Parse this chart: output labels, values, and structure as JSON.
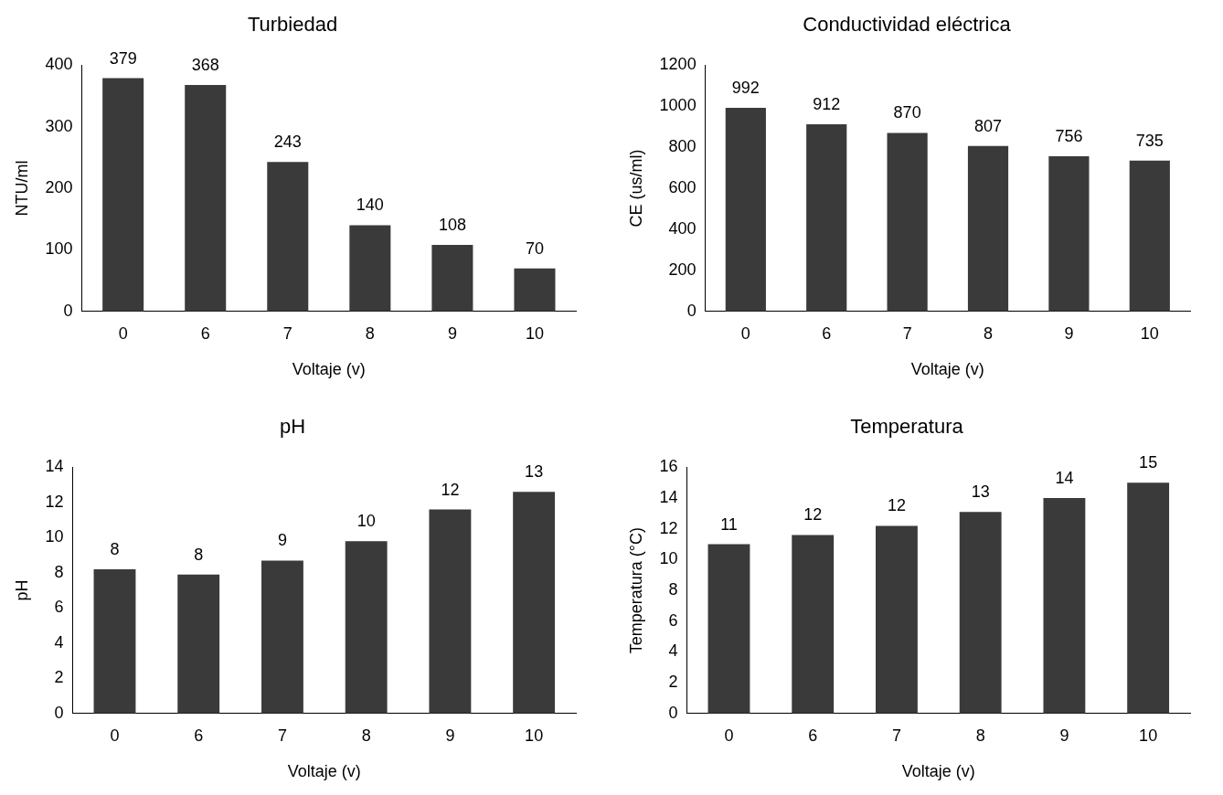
{
  "chart_data": [
    {
      "type": "bar",
      "title": "Turbiedad",
      "xlabel": "Voltaje (v)",
      "ylabel": "NTU/ml",
      "categories": [
        "0",
        "6",
        "7",
        "8",
        "9",
        "10"
      ],
      "values": [
        379,
        368,
        243,
        140,
        108,
        70
      ],
      "color": "#3a3a3a",
      "ylim": [
        0,
        400
      ],
      "yticks": [
        0,
        100,
        200,
        300,
        400
      ],
      "grid": false,
      "data_labels": true
    },
    {
      "type": "bar",
      "title": "Conductividad eléctrica",
      "xlabel": "Voltaje (v)",
      "ylabel": "CE (us/ml)",
      "categories": [
        "0",
        "6",
        "7",
        "8",
        "9",
        "10"
      ],
      "values": [
        992,
        912,
        870,
        807,
        756,
        735
      ],
      "color": "#3a3a3a",
      "ylim": [
        0,
        1200
      ],
      "yticks": [
        0,
        200,
        400,
        600,
        800,
        1000,
        1200
      ],
      "grid": false,
      "data_labels": true
    },
    {
      "type": "bar",
      "title": "pH",
      "xlabel": "Voltaje (v)",
      "ylabel": "pH",
      "categories": [
        "0",
        "6",
        "7",
        "8",
        "9",
        "10"
      ],
      "values": [
        8.2,
        7.9,
        8.7,
        9.8,
        11.6,
        12.6
      ],
      "value_labels": [
        "8",
        "8",
        "9",
        "10",
        "12",
        "13"
      ],
      "color": "#3a3a3a",
      "ylim": [
        0,
        14
      ],
      "yticks": [
        0,
        2,
        4,
        6,
        8,
        10,
        12,
        14
      ],
      "grid": false
    },
    {
      "type": "bar",
      "title": "Temperatura",
      "xlabel": "Voltaje (v)",
      "ylabel": "Temperatura (°C)",
      "categories": [
        "0",
        "6",
        "7",
        "8",
        "9",
        "10"
      ],
      "values": [
        11.0,
        11.6,
        12.2,
        13.1,
        14.0,
        15.0
      ],
      "value_labels": [
        "11",
        "12",
        "12",
        "13",
        "14",
        "15"
      ],
      "color": "#3a3a3a",
      "ylim": [
        0,
        16
      ],
      "yticks": [
        0,
        2,
        4,
        6,
        8,
        10,
        12,
        14,
        16
      ],
      "grid": false
    }
  ]
}
